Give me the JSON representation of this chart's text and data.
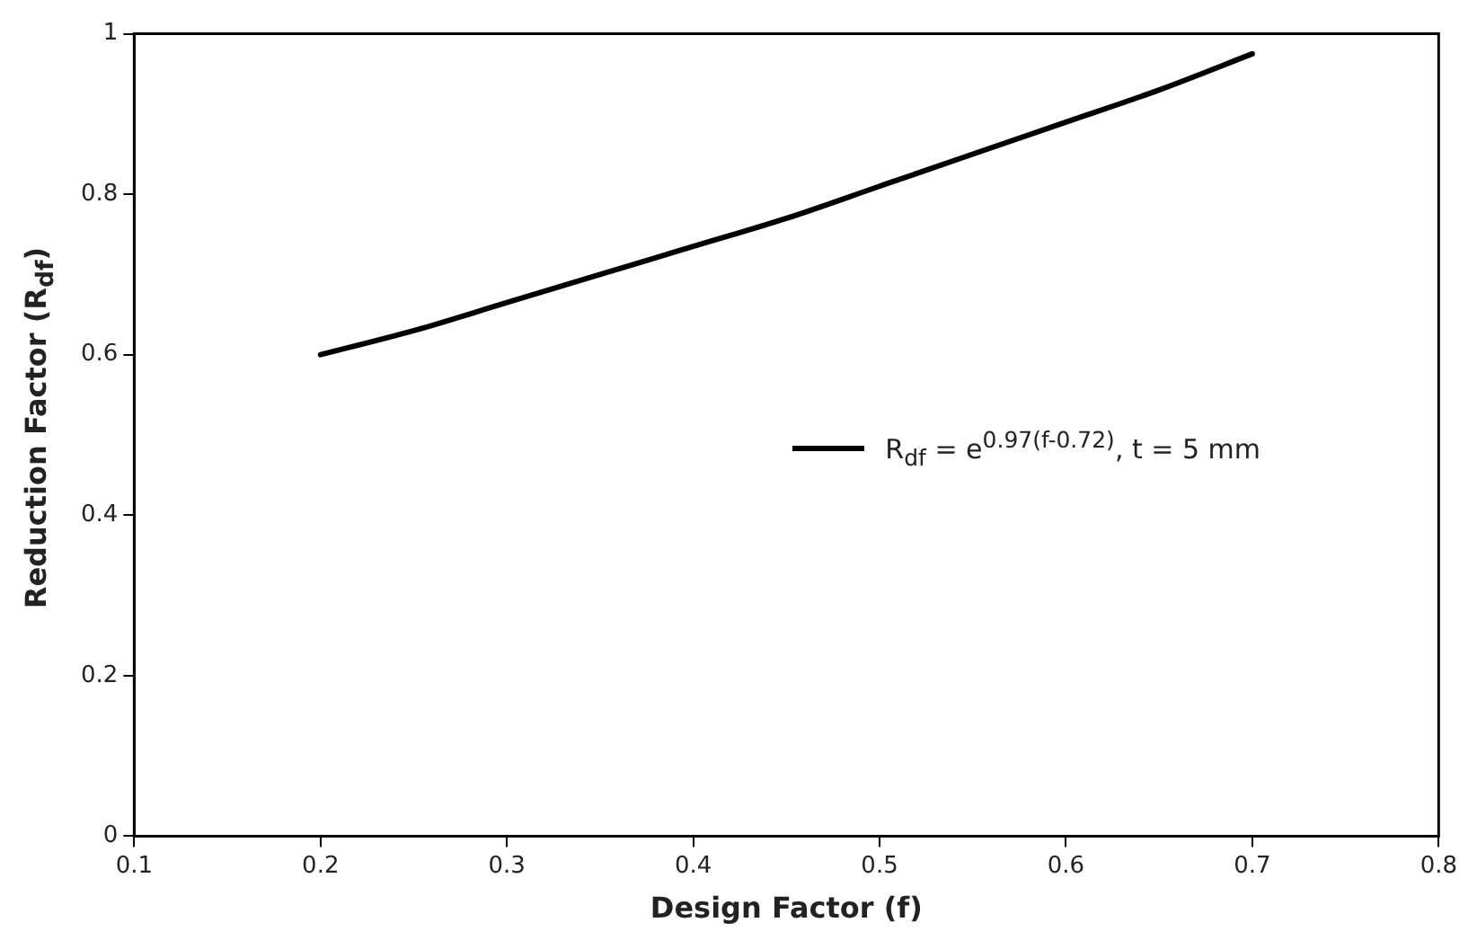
{
  "chart_data": {
    "type": "line",
    "xlabel": "Design Factor (f)",
    "ylabel": "Reduction Factor (R$_{df}$)",
    "x": [
      0.2,
      0.25,
      0.3,
      0.35,
      0.4,
      0.45,
      0.5,
      0.55,
      0.6,
      0.65,
      0.7
    ],
    "series": [
      {
        "name": "R$_{df}$ = e$^{0.97(f-0.72)}$, t = 5 mm",
        "color": "#000000",
        "values": [
          0.6,
          0.63,
          0.665,
          0.7,
          0.735,
          0.77,
          0.81,
          0.85,
          0.89,
          0.93,
          0.975
        ]
      }
    ],
    "xlim": [
      0.1,
      0.8
    ],
    "xticks": [
      0.1,
      0.2,
      0.3,
      0.4,
      0.5,
      0.6,
      0.7,
      0.8
    ],
    "ylim": [
      0,
      1
    ],
    "yticks": [
      0,
      0.2,
      0.4,
      0.6,
      0.8,
      1
    ],
    "grid": false,
    "legend": "right",
    "marker": "none",
    "line_style": "solid"
  }
}
